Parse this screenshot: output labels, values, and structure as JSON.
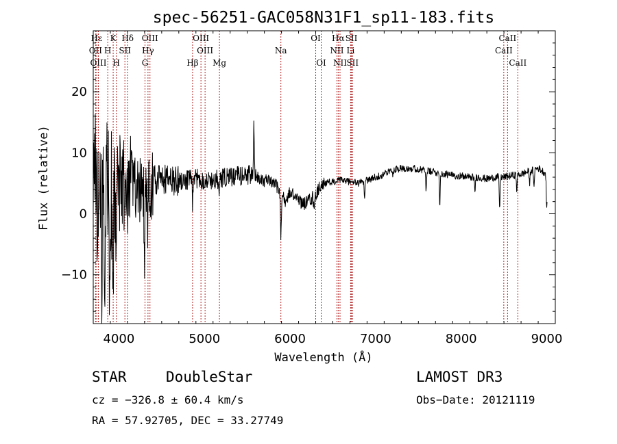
{
  "chart_data": {
    "type": "line",
    "title": "spec-56251-GAC058N31F1_sp11-183.fits",
    "xlabel": "Wavelength (Å)",
    "ylabel": "Flux (relative)",
    "xlim": [
      3700,
      9100
    ],
    "ylim": [
      -18,
      30
    ],
    "xticks": [
      {
        "value": 4000,
        "label": "4000"
      },
      {
        "value": 5000,
        "label": "5000"
      },
      {
        "value": 6000,
        "label": "6000"
      },
      {
        "value": 7000,
        "label": "7000"
      },
      {
        "value": 8000,
        "label": "8000"
      },
      {
        "value": 9000,
        "label": "9000"
      }
    ],
    "yticks": [
      {
        "value": 20,
        "label": "20"
      },
      {
        "value": 10,
        "label": "10"
      },
      {
        "value": 0,
        "label": "0"
      },
      {
        "value": -10,
        "label": "−10"
      }
    ],
    "spectrum_anchors": [
      [
        3700,
        5
      ],
      [
        3750,
        4
      ],
      [
        3800,
        3
      ],
      [
        3850,
        3.5
      ],
      [
        3900,
        4
      ],
      [
        3950,
        4.5
      ],
      [
        4000,
        5
      ],
      [
        4100,
        5.5
      ],
      [
        4200,
        4.5
      ],
      [
        4300,
        3
      ],
      [
        4400,
        5.5
      ],
      [
        4500,
        5.5
      ],
      [
        4600,
        5.5
      ],
      [
        4700,
        5.5
      ],
      [
        4800,
        5.5
      ],
      [
        4900,
        5.8
      ],
      [
        5000,
        5.5
      ],
      [
        5100,
        5.5
      ],
      [
        5200,
        5.8
      ],
      [
        5300,
        6
      ],
      [
        5400,
        6.2
      ],
      [
        5500,
        6.4
      ],
      [
        5600,
        6.2
      ],
      [
        5700,
        5.5
      ],
      [
        5800,
        5
      ],
      [
        5850,
        4.5
      ],
      [
        5900,
        3
      ],
      [
        5950,
        2
      ],
      [
        6000,
        3.5
      ],
      [
        6100,
        2.5
      ],
      [
        6150,
        1.5
      ],
      [
        6200,
        2
      ],
      [
        6250,
        2.5
      ],
      [
        6300,
        3
      ],
      [
        6350,
        4.5
      ],
      [
        6400,
        5
      ],
      [
        6500,
        5.2
      ],
      [
        6600,
        5.5
      ],
      [
        6700,
        5.3
      ],
      [
        6800,
        5
      ],
      [
        6900,
        5.5
      ],
      [
        7000,
        6
      ],
      [
        7100,
        6.5
      ],
      [
        7200,
        7.2
      ],
      [
        7300,
        7.5
      ],
      [
        7400,
        7.5
      ],
      [
        7500,
        7.3
      ],
      [
        7600,
        7
      ],
      [
        7700,
        6.8
      ],
      [
        7800,
        6.5
      ],
      [
        7900,
        6.3
      ],
      [
        8000,
        6.2
      ],
      [
        8100,
        6
      ],
      [
        8200,
        6
      ],
      [
        8300,
        5.7
      ],
      [
        8400,
        6
      ],
      [
        8500,
        6
      ],
      [
        8600,
        6.3
      ],
      [
        8700,
        6.5
      ],
      [
        8800,
        7
      ],
      [
        8900,
        7.5
      ],
      [
        9000,
        6.5
      ]
    ],
    "spectrum_features": [
      {
        "x": 3800,
        "depth": 16
      },
      {
        "x": 3830,
        "depth": 13
      },
      {
        "x": 3890,
        "depth": 18
      },
      {
        "x": 3933,
        "depth": 15
      },
      {
        "x": 3968,
        "depth": 12
      },
      {
        "x": 4102,
        "depth": 10
      },
      {
        "x": 4300,
        "depth": 11
      },
      {
        "x": 4340,
        "depth": 6
      },
      {
        "x": 4861,
        "depth": 4
      },
      {
        "x": 5170,
        "depth": 3
      },
      {
        "x": 5578,
        "depth": -8
      },
      {
        "x": 5893,
        "depth": 7
      },
      {
        "x": 6280,
        "depth": 2
      },
      {
        "x": 6870,
        "depth": 2.5
      },
      {
        "x": 7200,
        "depth": 1
      },
      {
        "x": 7590,
        "depth": 3
      },
      {
        "x": 7750,
        "depth": 5
      },
      {
        "x": 8160,
        "depth": 2.5
      },
      {
        "x": 8450,
        "depth": 5
      },
      {
        "x": 8650,
        "depth": 2.5
      },
      {
        "x": 8800,
        "depth": 2
      },
      {
        "x": 8850,
        "depth": 3
      },
      {
        "x": 9000,
        "depth": 6
      }
    ],
    "noise": [
      {
        "from": 3700,
        "to": 3950,
        "amplitude": 13
      },
      {
        "from": 3950,
        "to": 4150,
        "amplitude": 9
      },
      {
        "from": 4150,
        "to": 4400,
        "amplitude": 6
      },
      {
        "from": 4400,
        "to": 4700,
        "amplitude": 2.5
      },
      {
        "from": 4700,
        "to": 5600,
        "amplitude": 1.6
      },
      {
        "from": 5600,
        "to": 6400,
        "amplitude": 1.1
      },
      {
        "from": 6400,
        "to": 9000,
        "amplitude": 0.6
      }
    ],
    "spectral_lines": [
      {
        "label": "Hε",
        "wavelength": 3740,
        "row": 1
      },
      {
        "label": "K",
        "wavelength": 3933,
        "row": 1
      },
      {
        "label": "Hδ",
        "wavelength": 4102,
        "row": 1
      },
      {
        "label": "OIII",
        "wavelength": 4363,
        "row": 1
      },
      {
        "label": "OIII",
        "wavelength": 4959,
        "row": 1
      },
      {
        "label": "OI",
        "wavelength": 6300,
        "row": 1
      },
      {
        "label": "Hα",
        "wavelength": 6563,
        "row": 1
      },
      {
        "label": "SII",
        "wavelength": 6717,
        "row": 1
      },
      {
        "label": "CaII",
        "wavelength": 8542,
        "row": 1
      },
      {
        "label": "OII",
        "wavelength": 3727,
        "row": 2
      },
      {
        "label": "H",
        "wavelength": 3870,
        "row": 2
      },
      {
        "label": "SII",
        "wavelength": 4070,
        "row": 2
      },
      {
        "label": "Hγ",
        "wavelength": 4340,
        "row": 2
      },
      {
        "label": "OIII",
        "wavelength": 5007,
        "row": 2
      },
      {
        "label": "Na",
        "wavelength": 5893,
        "row": 2
      },
      {
        "label": "NII",
        "wavelength": 6548,
        "row": 2
      },
      {
        "label": "Li",
        "wavelength": 6708,
        "row": 2
      },
      {
        "label": "CaII",
        "wavelength": 8498,
        "row": 2
      },
      {
        "label": "OIII",
        "wavelength": 3760,
        "row": 3
      },
      {
        "label": "H",
        "wavelength": 3970,
        "row": 3
      },
      {
        "label": "G",
        "wavelength": 4305,
        "row": 3
      },
      {
        "label": "Hβ",
        "wavelength": 4861,
        "row": 3
      },
      {
        "label": "Mg",
        "wavelength": 5175,
        "row": 3
      },
      {
        "label": "OI",
        "wavelength": 6364,
        "row": 3
      },
      {
        "label": "NII",
        "wavelength": 6584,
        "row": 3
      },
      {
        "label": "SII",
        "wavelength": 6731,
        "row": 3
      },
      {
        "label": "CaII",
        "wavelength": 8662,
        "row": 3
      }
    ],
    "colors": {
      "spectrum": "#000000",
      "line_markers": "#b22222",
      "axes": "#000000"
    }
  },
  "footer": {
    "object_class": "STAR",
    "subclass": "DoubleStar",
    "survey": "LAMOST DR3",
    "velocity": "cz = −326.8 ± 60.4 km/s",
    "obs_date": "Obs−Date: 20121119",
    "coordinates": "RA =  57.92705, DEC =  33.27749"
  }
}
